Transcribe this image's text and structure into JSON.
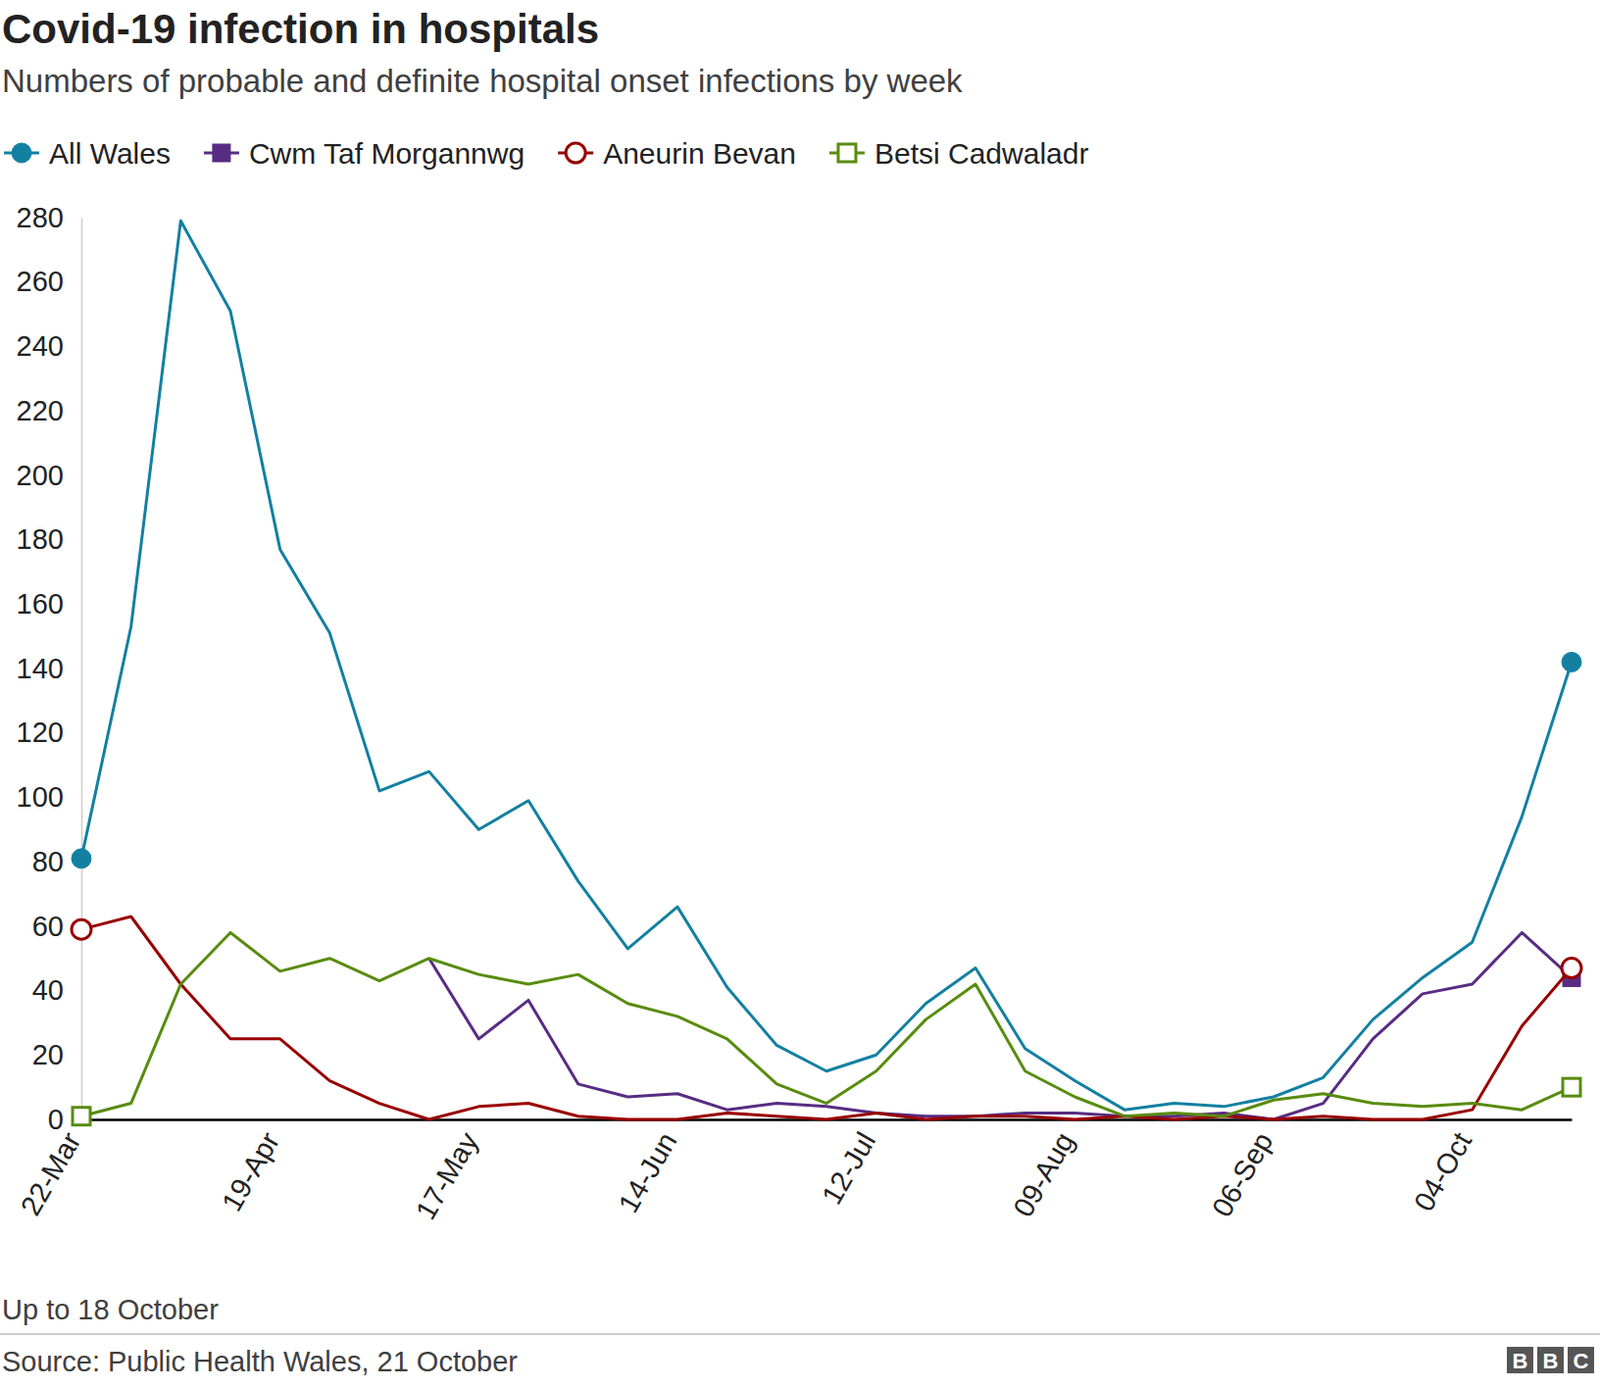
{
  "chart_data": {
    "type": "line",
    "title": "Covid-19 infection in hospitals",
    "subtitle": "Numbers of probable and definite hospital onset infections by week",
    "footnote": "Up to 18 October",
    "source": "Source: Public Health Wales, 21 October",
    "logo": "BBC",
    "categories": [
      "22-Mar",
      null,
      null,
      null,
      "19-Apr",
      null,
      null,
      null,
      "17-May",
      null,
      null,
      null,
      "14-Jun",
      null,
      null,
      null,
      "12-Jul",
      null,
      null,
      null,
      "09-Aug",
      null,
      null,
      null,
      "06-Sep",
      null,
      null,
      null,
      "04-Oct",
      null,
      null
    ],
    "ylim": [
      0,
      280
    ],
    "yticks": [
      0,
      20,
      40,
      60,
      80,
      100,
      120,
      140,
      160,
      180,
      200,
      220,
      240,
      260,
      280
    ],
    "grid": false,
    "legend": "top",
    "series": [
      {
        "name": "All Wales",
        "color": "#1380a1",
        "marker": "circle",
        "values": [
          81,
          153,
          279,
          251,
          177,
          151,
          102,
          108,
          90,
          99,
          74,
          53,
          66,
          41,
          23,
          15,
          20,
          36,
          47,
          22,
          12,
          3,
          5,
          4,
          7,
          13,
          31,
          44,
          55,
          94,
          142
        ]
      },
      {
        "name": "Cwm Taf Morgannwg",
        "color": "#582c83",
        "marker": "square",
        "values": [
          null,
          null,
          null,
          null,
          null,
          null,
          null,
          50,
          25,
          37,
          11,
          7,
          8,
          3,
          5,
          4,
          2,
          1,
          1,
          2,
          2,
          1,
          1,
          2,
          0,
          5,
          25,
          39,
          42,
          58,
          44
        ]
      },
      {
        "name": "Aneurin Bevan",
        "color": "#990000",
        "marker": "open-circle",
        "values": [
          59,
          63,
          42,
          25,
          25,
          12,
          5,
          0,
          4,
          5,
          1,
          0,
          0,
          2,
          1,
          0,
          2,
          0,
          1,
          1,
          0,
          1,
          0,
          1,
          0,
          1,
          0,
          0,
          3,
          29,
          47
        ]
      },
      {
        "name": "Betsi Cadwaladr",
        "color": "#588c0f",
        "marker": "open-square",
        "values": [
          1,
          5,
          42,
          58,
          46,
          50,
          43,
          50,
          45,
          42,
          45,
          36,
          32,
          25,
          11,
          5,
          15,
          31,
          42,
          15,
          7,
          1,
          2,
          1,
          6,
          8,
          5,
          4,
          5,
          3,
          10
        ]
      }
    ]
  }
}
